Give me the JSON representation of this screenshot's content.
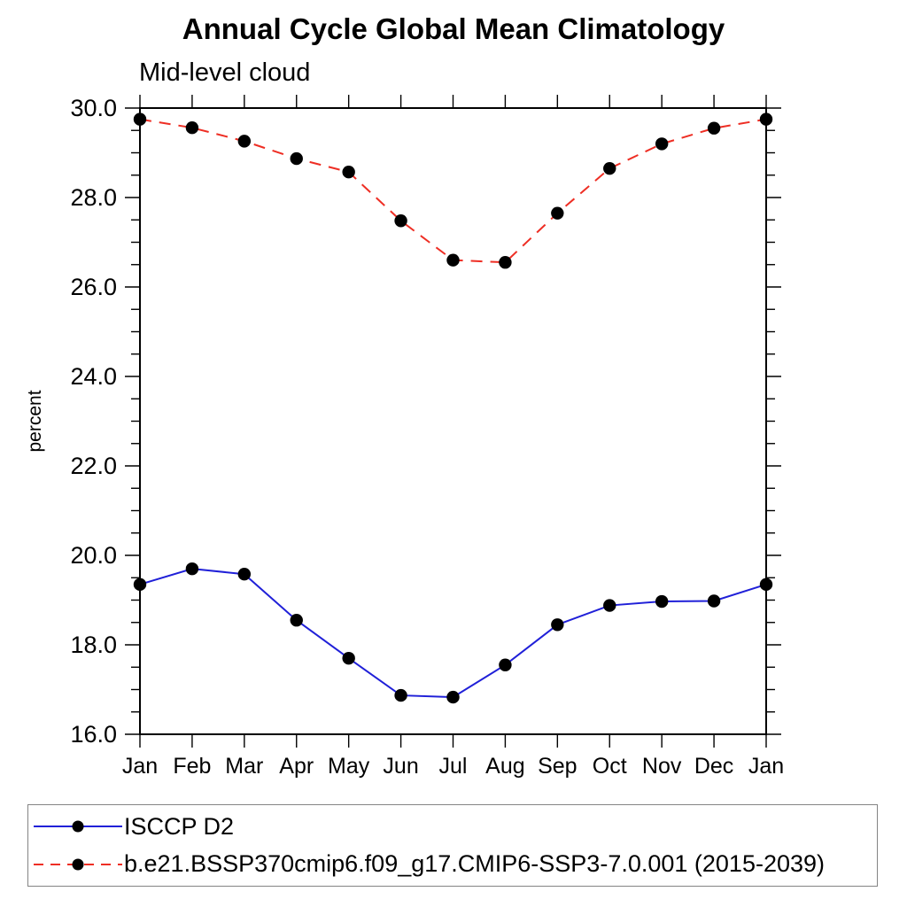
{
  "chart_data": {
    "type": "line",
    "title": "Annual Cycle Global Mean Climatology",
    "subtitle": "Mid-level cloud",
    "ylabel": "percent",
    "xlabel": "",
    "categories": [
      "Jan",
      "Feb",
      "Mar",
      "Apr",
      "May",
      "Jun",
      "Jul",
      "Aug",
      "Sep",
      "Oct",
      "Nov",
      "Dec",
      "Jan"
    ],
    "ylim": [
      16.0,
      30.0
    ],
    "ytick_major_step": 2.0,
    "ytick_minor_step": 0.5,
    "ytick_label_format": "one-decimal",
    "grid": false,
    "legend_position": "bottom-left-box",
    "series": [
      {
        "name": "ISCCP D2",
        "color": "#2020d8",
        "line_style": "solid",
        "marker": "filled-circle",
        "marker_color": "#000000",
        "values": [
          19.35,
          19.7,
          19.58,
          18.55,
          17.7,
          16.87,
          16.83,
          17.55,
          18.45,
          18.88,
          18.97,
          18.98,
          19.35
        ]
      },
      {
        "name": "b.e21.BSSP370cmip6.f09_g17.CMIP6-SSP3-7.0.001 (2015-2039)",
        "color": "#ee2e24",
        "line_style": "dashed",
        "marker": "filled-circle",
        "marker_color": "#000000",
        "values": [
          29.75,
          29.56,
          29.26,
          28.87,
          28.57,
          27.48,
          26.6,
          26.55,
          27.65,
          28.65,
          29.2,
          29.55,
          29.75
        ]
      }
    ]
  }
}
